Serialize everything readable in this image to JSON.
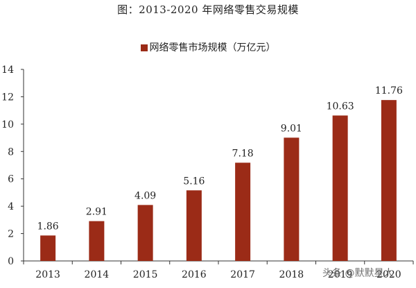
{
  "title": "图：2013-2020 年网络零售交易规模",
  "legend": {
    "label": "网络零售市场规模（万亿元）",
    "color": "#9B2B17"
  },
  "watermark": "头条 @默默星人",
  "chart_data": {
    "type": "bar",
    "title": "图：2013-2020 年网络零售交易规模",
    "categories": [
      "2013",
      "2014",
      "2015",
      "2016",
      "2017",
      "2018",
      "2019",
      "2020"
    ],
    "series": [
      {
        "name": "网络零售市场规模（万亿元）",
        "values": [
          1.86,
          2.91,
          4.09,
          5.16,
          7.18,
          9.01,
          10.63,
          11.76
        ],
        "color": "#9B2B17"
      }
    ],
    "xlabel": "",
    "ylabel": "",
    "ylim": [
      0,
      14
    ],
    "yticks": [
      0,
      2,
      4,
      6,
      8,
      10,
      12,
      14
    ],
    "grid": false,
    "legend_position": "top",
    "data_labels": true
  }
}
